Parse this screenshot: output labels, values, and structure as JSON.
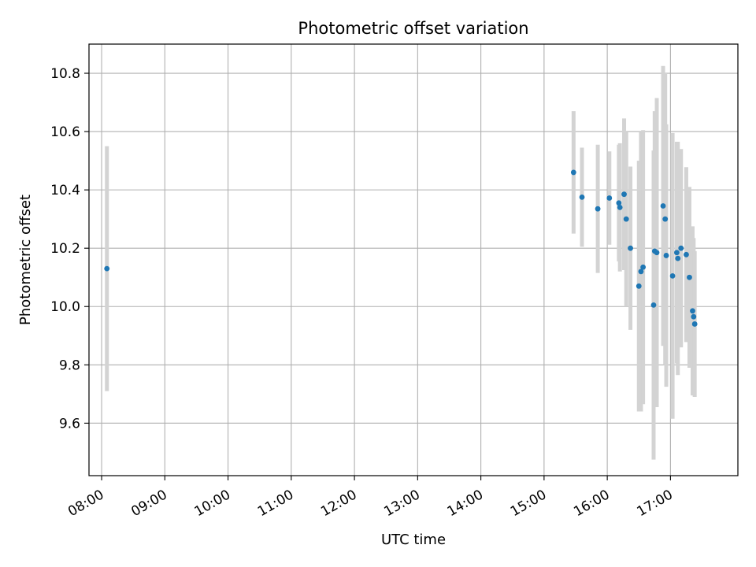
{
  "chart_data": {
    "type": "scatter",
    "title": "Photometric offset variation",
    "xlabel": "UTC time",
    "ylabel": "Photometric offset",
    "x_unit": "hours UTC",
    "xlim": [
      "07:48",
      "18:04"
    ],
    "ylim": [
      9.42,
      10.9
    ],
    "x_ticks": [
      "08:00",
      "09:00",
      "10:00",
      "11:00",
      "12:00",
      "13:00",
      "14:00",
      "15:00",
      "16:00",
      "17:00"
    ],
    "y_ticks": [
      "9.6",
      "9.8",
      "10.0",
      "10.2",
      "10.4",
      "10.6",
      "10.8"
    ],
    "grid": true,
    "point_color": "#1f77b4",
    "errorbar_color": "#d3d3d3",
    "points": [
      {
        "x": "08:05",
        "y": 10.13,
        "err": 0.42
      },
      {
        "x": "15:28",
        "y": 10.46,
        "err": 0.21
      },
      {
        "x": "15:36",
        "y": 10.375,
        "err": 0.17
      },
      {
        "x": "15:51",
        "y": 10.335,
        "err": 0.22
      },
      {
        "x": "16:02",
        "y": 10.372,
        "err": 0.16
      },
      {
        "x": "16:11",
        "y": 10.355,
        "err": 0.2
      },
      {
        "x": "16:12",
        "y": 10.34,
        "err": 0.22
      },
      {
        "x": "16:16",
        "y": 10.385,
        "err": 0.26
      },
      {
        "x": "16:18",
        "y": 10.3,
        "err": 0.3
      },
      {
        "x": "16:22",
        "y": 10.2,
        "err": 0.28
      },
      {
        "x": "16:30",
        "y": 10.07,
        "err": 0.43
      },
      {
        "x": "16:32",
        "y": 10.12,
        "err": 0.48
      },
      {
        "x": "16:34",
        "y": 10.135,
        "err": 0.47
      },
      {
        "x": "16:44",
        "y": 10.005,
        "err": 0.53
      },
      {
        "x": "16:45",
        "y": 10.19,
        "err": 0.48
      },
      {
        "x": "16:47",
        "y": 10.185,
        "err": 0.53
      },
      {
        "x": "16:53",
        "y": 10.345,
        "err": 0.48
      },
      {
        "x": "16:55",
        "y": 10.3,
        "err": 0.5
      },
      {
        "x": "16:56",
        "y": 10.175,
        "err": 0.45
      },
      {
        "x": "17:02",
        "y": 10.105,
        "err": 0.49
      },
      {
        "x": "17:06",
        "y": 10.185,
        "err": 0.38
      },
      {
        "x": "17:07",
        "y": 10.165,
        "err": 0.4
      },
      {
        "x": "17:10",
        "y": 10.2,
        "err": 0.34
      },
      {
        "x": "17:15",
        "y": 10.178,
        "err": 0.3
      },
      {
        "x": "17:18",
        "y": 10.1,
        "err": 0.31
      },
      {
        "x": "17:21",
        "y": 9.985,
        "err": 0.29
      },
      {
        "x": "17:22",
        "y": 9.965,
        "err": 0.27
      },
      {
        "x": "17:23",
        "y": 9.94,
        "err": 0.25
      }
    ]
  }
}
